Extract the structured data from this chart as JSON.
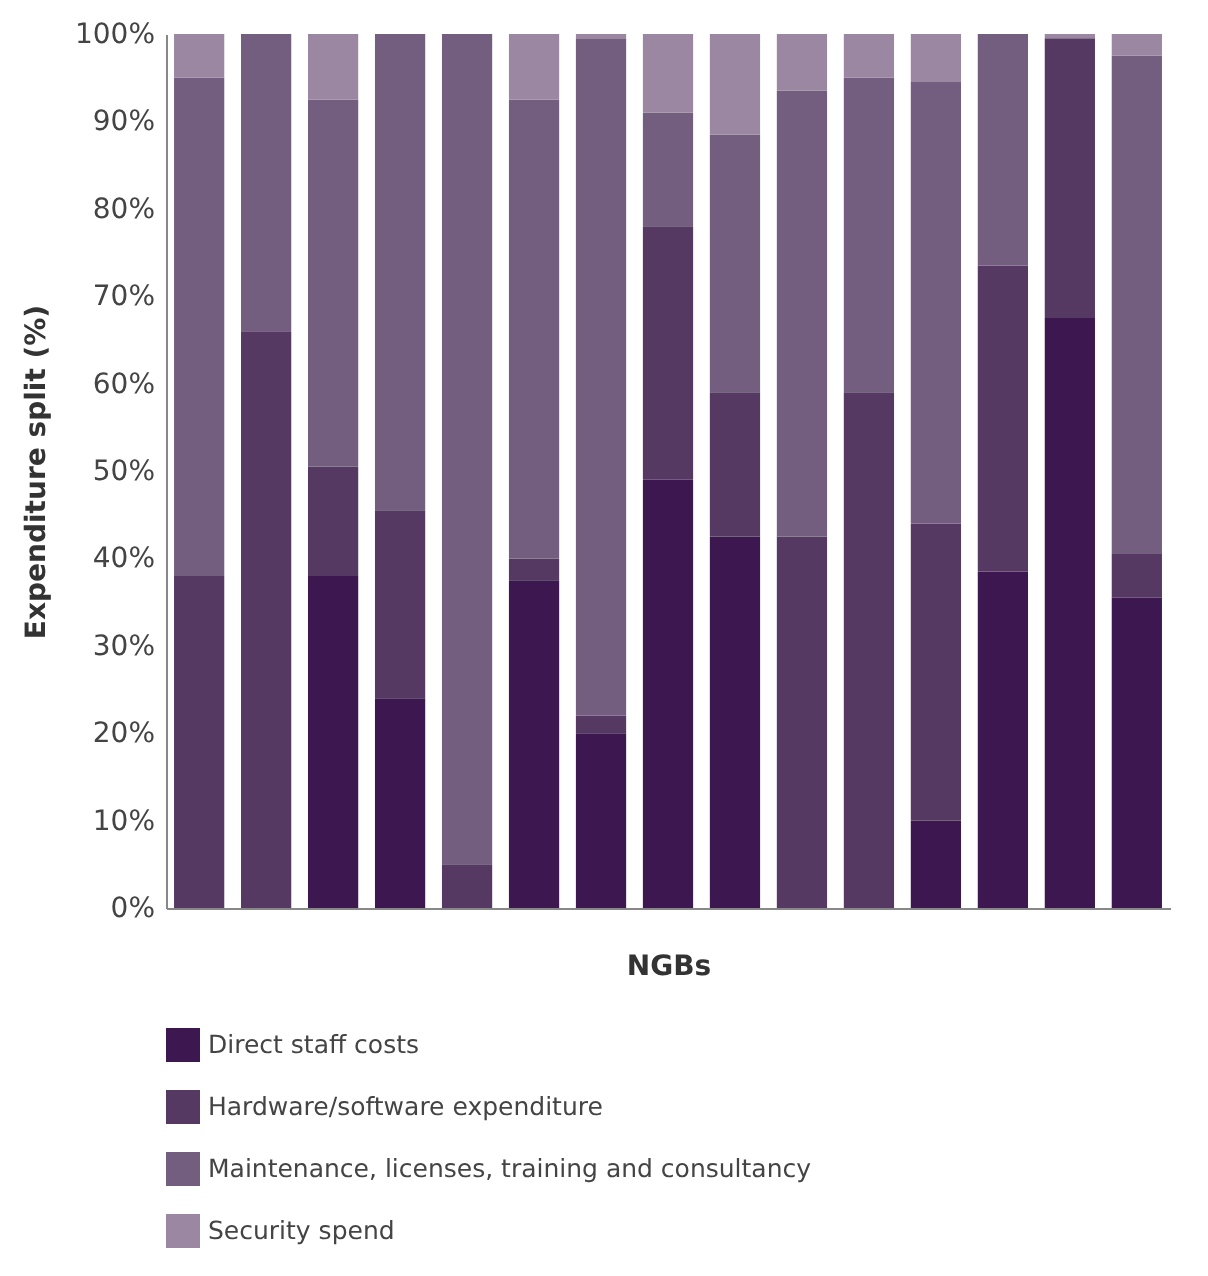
{
  "chart_data": {
    "type": "bar",
    "stacked": true,
    "xlabel": "NGBs",
    "ylabel": "Expenditure split (%)",
    "categories": [
      null,
      null,
      null,
      null,
      null,
      null,
      null,
      null,
      null,
      null,
      null,
      null,
      null,
      null,
      null
    ],
    "series": [
      {
        "name": "Direct staff costs",
        "color": "#3d1850",
        "values": [
          0,
          0,
          38,
          24,
          0,
          37.5,
          20,
          49,
          42.5,
          0,
          0,
          10,
          38.5,
          67.5,
          35.5
        ]
      },
      {
        "name": "Hardware/software expenditure",
        "color": "#553963",
        "values": [
          38,
          66,
          12.5,
          21.5,
          5,
          2.5,
          2,
          29,
          16.5,
          42.5,
          59,
          34,
          35,
          32,
          5
        ]
      },
      {
        "name": "Maintenance, licenses, training and consultancy",
        "color": "#745e80",
        "values": [
          57,
          34,
          42,
          54.5,
          95,
          52.5,
          77.5,
          13,
          29.5,
          51,
          36,
          50.5,
          26.5,
          0,
          57
        ]
      },
      {
        "name": "Security spend",
        "color": "#9b87a2",
        "values": [
          5,
          0,
          7.5,
          0,
          0,
          7.5,
          0.5,
          9,
          11.5,
          6.5,
          5,
          5.5,
          0,
          0.5,
          2.5
        ]
      }
    ],
    "ylim": [
      0,
      100
    ],
    "yticks": [
      {
        "value": 0,
        "label": "0%"
      },
      {
        "value": 10,
        "label": "10%"
      },
      {
        "value": 20,
        "label": "20%"
      },
      {
        "value": 30,
        "label": "30%"
      },
      {
        "value": 40,
        "label": "40%"
      },
      {
        "value": 50,
        "label": "50%"
      },
      {
        "value": 60,
        "label": "60%"
      },
      {
        "value": 70,
        "label": "70%"
      },
      {
        "value": 80,
        "label": "80%"
      },
      {
        "value": 90,
        "label": "90%"
      },
      {
        "value": 100,
        "label": "100%"
      }
    ],
    "tick_labels": "y",
    "grid": false,
    "legend": "bottom"
  }
}
